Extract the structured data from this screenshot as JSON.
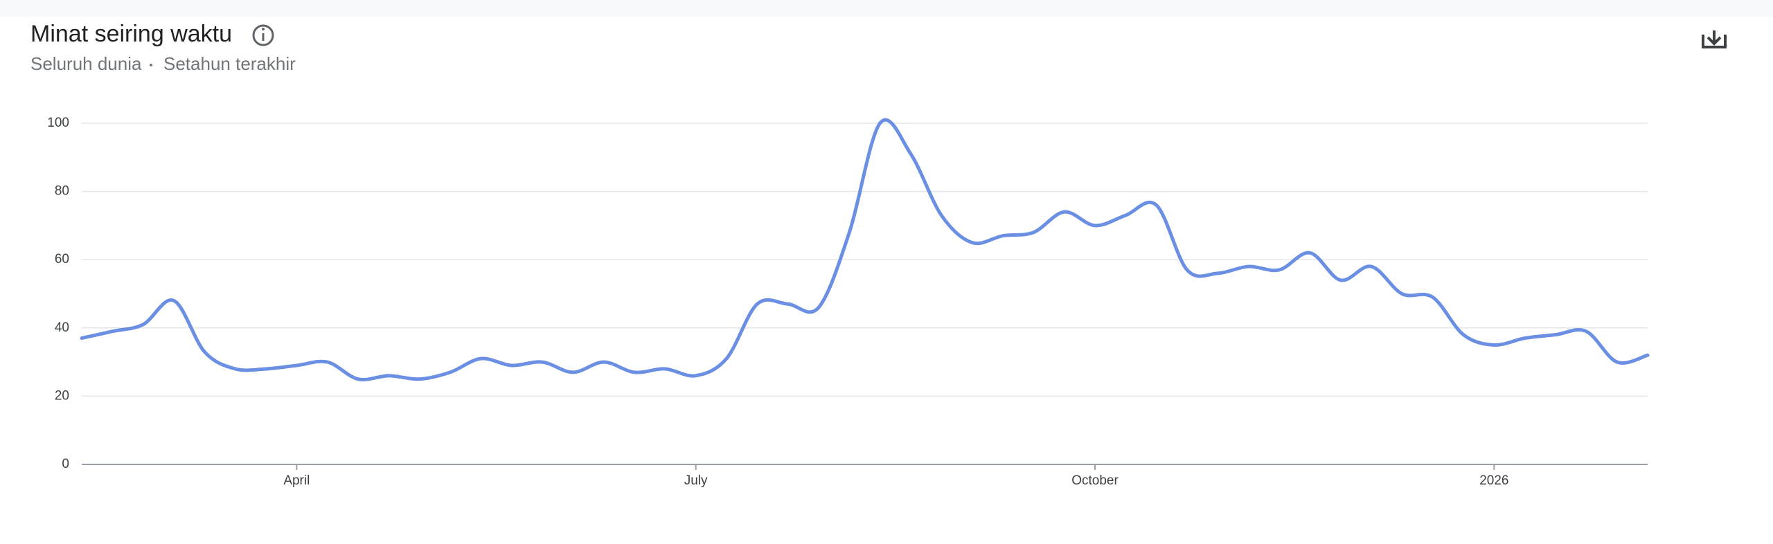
{
  "chart_data": {
    "type": "line",
    "title": "Minat seiring waktu",
    "subtitle": [
      "Seluruh dunia",
      "Setahun terakhir"
    ],
    "categories": [
      null,
      null,
      null,
      null,
      null,
      null,
      null,
      "April",
      null,
      null,
      null,
      null,
      null,
      null,
      null,
      null,
      null,
      null,
      null,
      null,
      "July",
      null,
      null,
      null,
      null,
      null,
      null,
      null,
      null,
      null,
      null,
      null,
      null,
      "October",
      null,
      null,
      null,
      null,
      null,
      null,
      null,
      null,
      null,
      null,
      null,
      null,
      "2026",
      null,
      null,
      null,
      null,
      null
    ],
    "series": [
      {
        "color": "#6b8fe3",
        "values": [
          37,
          39,
          41,
          48,
          33,
          28,
          28,
          29,
          30,
          25,
          26,
          25,
          27,
          31,
          29,
          30,
          27,
          30,
          27,
          28,
          26,
          31,
          47,
          47,
          46,
          68,
          100,
          91,
          73,
          65,
          67,
          68,
          74,
          70,
          73,
          76,
          57,
          56,
          58,
          57,
          62,
          54,
          58,
          50,
          49,
          38,
          35,
          37,
          38,
          39,
          30,
          32
        ]
      }
    ],
    "ylim": [
      0,
      100
    ],
    "yticks": [
      0,
      20,
      40,
      60,
      80,
      100
    ],
    "grid": true
  }
}
